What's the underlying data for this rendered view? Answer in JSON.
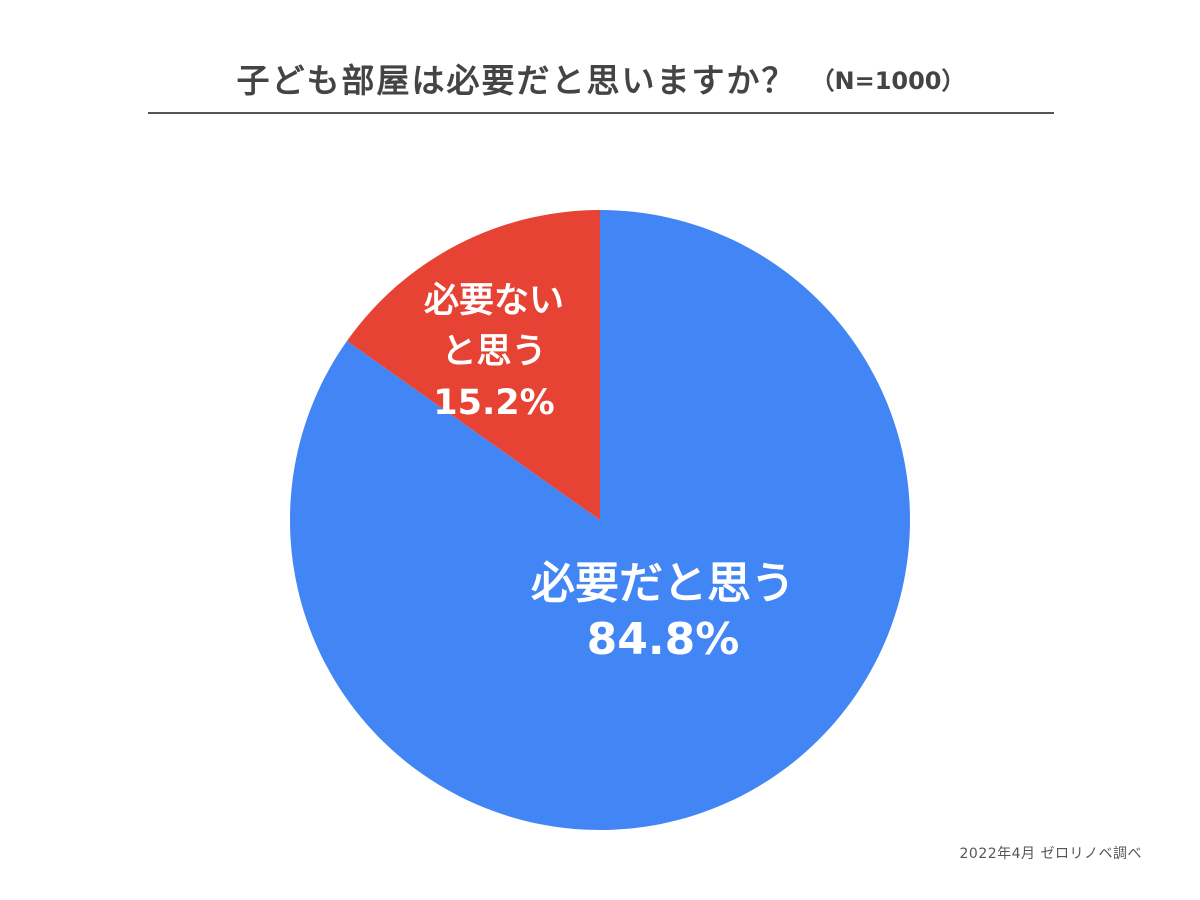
{
  "header": {
    "title": "子ども部屋は必要だと思いますか？",
    "sample": "（N=1000）"
  },
  "chart_data": {
    "type": "pie",
    "title": "子ども部屋は必要だと思いますか？",
    "note": "（N=1000）",
    "start": "12 o'clock",
    "direction": "clockwise",
    "slices": [
      {
        "label_lines": [
          "必要だと思う"
        ],
        "value": 84.8,
        "value_label": "84.8%",
        "color": "#4285f4"
      },
      {
        "label_lines": [
          "必要ない",
          "と思う"
        ],
        "value": 15.2,
        "value_label": "15.2%",
        "color": "#e64335"
      }
    ]
  },
  "footer": {
    "source": "2022年4月 ゼロリノベ調べ"
  }
}
